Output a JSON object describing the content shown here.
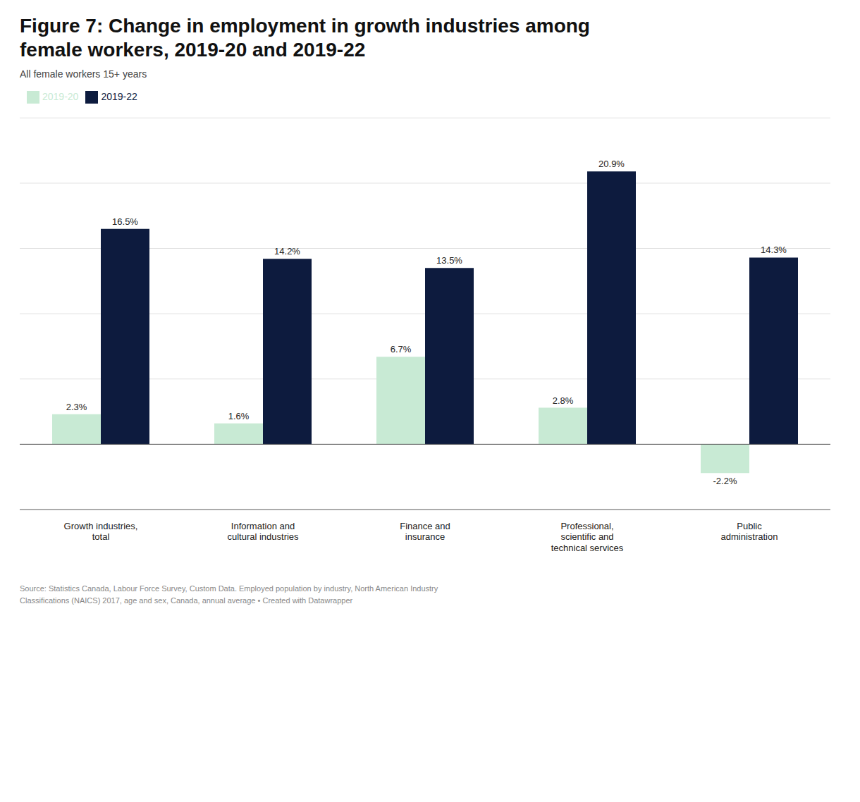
{
  "chart_data": {
    "type": "bar",
    "title": "Figure 7: Change in employment in growth industries among\nfemale workers, 2019-20 and 2019-22",
    "subtitle": "All female workers 15+ years",
    "categories": [
      "Growth industries,\ntotal",
      "Information and\ncultural industries",
      "Finance and\ninsurance",
      "Professional,\nscientific and\ntechnical services",
      "Public\nadministration"
    ],
    "series": [
      {
        "name": "2019-20",
        "color": "#c8ead4",
        "values": [
          2.3,
          1.6,
          6.7,
          2.8,
          -2.2
        ],
        "value_labels": [
          "2.3%",
          "1.6%",
          "6.7%",
          "2.8%",
          "-2.2%"
        ]
      },
      {
        "name": "2019-22",
        "color": "#0d1b3e",
        "values": [
          16.5,
          14.2,
          13.5,
          20.9,
          14.3
        ],
        "value_labels": [
          "16.5%",
          "14.2%",
          "13.5%",
          "20.9%",
          "14.3%"
        ]
      }
    ],
    "ylim": [
      -5,
      25
    ],
    "yticks": [
      -5,
      0,
      5,
      10,
      15,
      20,
      25
    ],
    "grid": true,
    "legend": "top",
    "data_labels": true,
    "tick_labels": "x",
    "annotations": [
      "Source: Statistics Canada, Labour Force Survey, Custom Data. Employed population by industry, North American Industry\nClassifications (NAICS) 2017, age and sex, Canada, annual average • Created with Datawrapper"
    ]
  }
}
